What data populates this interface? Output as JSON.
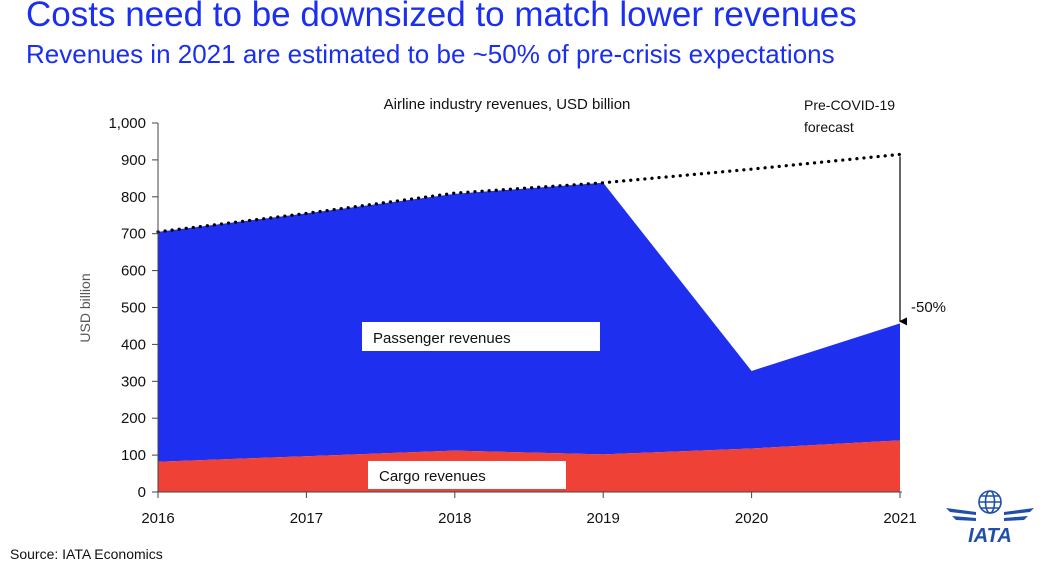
{
  "page": {
    "title": "Costs need to be downsized to match lower revenues",
    "subtitle": "Revenues in 2021 are estimated to be ~50% of pre-crisis expectations",
    "source": "Source: IATA Economics",
    "logo_text": "IATA"
  },
  "chart_data": {
    "type": "area",
    "title": "Airline industry revenues, USD billion",
    "xlabel": "",
    "ylabel": "USD billion",
    "x": [
      "2016",
      "2017",
      "2018",
      "2019",
      "2020",
      "2021"
    ],
    "ylim": [
      0,
      1000
    ],
    "yticks": [
      "0",
      "100",
      "200",
      "300",
      "400",
      "500",
      "600",
      "700",
      "800",
      "900",
      "1,000"
    ],
    "stacked": true,
    "series": [
      {
        "name": "Cargo revenues",
        "color": "#ef4135",
        "values": [
          82,
          97,
          112,
          102,
          118,
          140
        ]
      },
      {
        "name": "Passenger revenues",
        "color": "#1f2ff0",
        "values": [
          623,
          658,
          696,
          736,
          210,
          317
        ]
      }
    ],
    "forecast": {
      "label_line1": "Pre-COVID-19",
      "label_line2": "forecast",
      "style": "dotted",
      "color": "#000000",
      "values": [
        705,
        755,
        810,
        838,
        875,
        915
      ]
    },
    "annotation": {
      "label": "-50%"
    },
    "grid": false
  }
}
